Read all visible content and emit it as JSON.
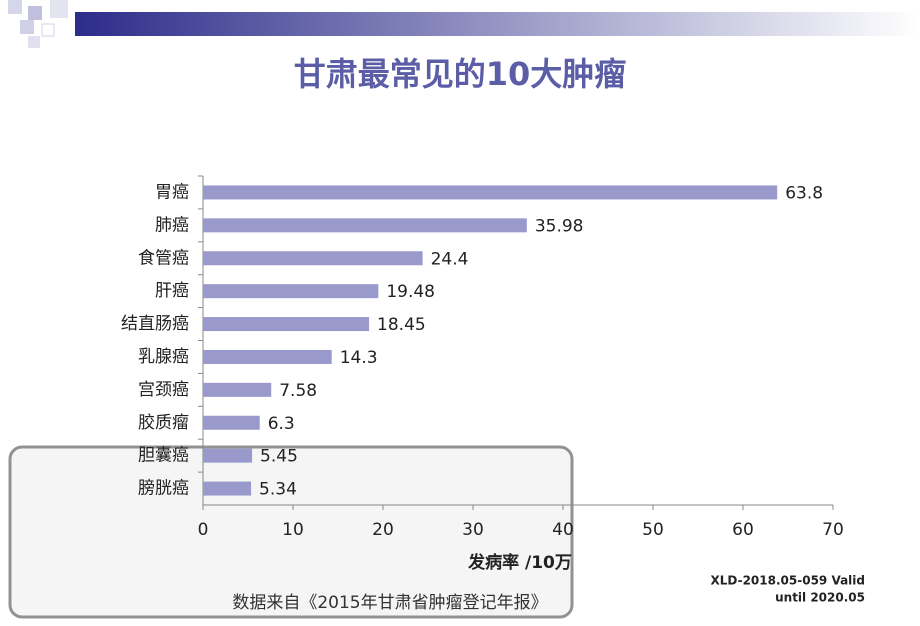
{
  "chart_data": {
    "type": "bar",
    "orientation": "horizontal",
    "title": "甘肃最常见的10大肿瘤",
    "categories": [
      "胃癌",
      "肺癌",
      "食管癌",
      "肝癌",
      "结直肠癌",
      "乳腺癌",
      "宫颈癌",
      "胶质瘤",
      "胆囊癌",
      "膀胱癌"
    ],
    "values": [
      63.8,
      35.98,
      24.4,
      19.48,
      18.45,
      14.3,
      7.58,
      6.3,
      5.45,
      5.34
    ],
    "color": "#9999cc",
    "xlim": [
      0,
      70
    ],
    "xticks": [
      0,
      10,
      20,
      30,
      40,
      50,
      60,
      70
    ],
    "xlabel": "发病率 /10万",
    "source": "数据来自《2015年甘肃省肿瘤登记年报》",
    "notice": [
      "XLD-2018.05-059 Valid",
      "until 2020.05"
    ]
  }
}
